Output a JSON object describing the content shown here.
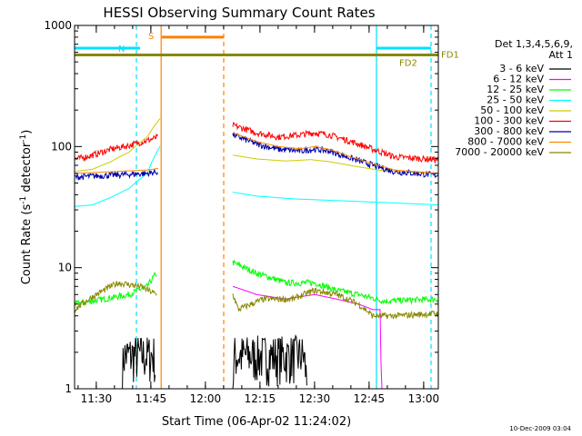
{
  "chart_data": {
    "type": "line",
    "title": "HESSI Observing Summary Count Rates",
    "xlabel": "Start Time (06-Apr-02 11:24:02)",
    "ylabel_main": "Count Rate (s",
    "ylabel_sup1": "-1",
    "ylabel_mid": " detector",
    "ylabel_sup2": "-1",
    "ylabel_end": ")",
    "yscale": "log",
    "ylim": [
      1,
      1000
    ],
    "xlim_minutes": [
      0,
      100
    ],
    "x_ticks": [
      {
        "m": 5.97,
        "label": "11:30"
      },
      {
        "m": 20.97,
        "label": "11:45"
      },
      {
        "m": 35.97,
        "label": "12:00"
      },
      {
        "m": 50.97,
        "label": "12:15"
      },
      {
        "m": 65.97,
        "label": "12:30"
      },
      {
        "m": 80.97,
        "label": "12:45"
      },
      {
        "m": 95.97,
        "label": "13:00"
      }
    ],
    "y_ticks": [
      {
        "v": 1,
        "label": "1"
      },
      {
        "v": 10,
        "label": "10"
      },
      {
        "v": 100,
        "label": "100"
      },
      {
        "v": 1000,
        "label": "1000"
      }
    ],
    "legend_title_1": "Det 1,3,4,5,6,9,",
    "legend_title_2": "Att 1",
    "legend_position": "right",
    "date_stamp": "10-Dec-2009 03:04",
    "gap_minutes": [
      23.8,
      43.3
    ],
    "series": [
      {
        "name": "3 - 6 keV",
        "color": "#000000",
        "segments": [
          [
            [
              0,
              1
            ],
            [
              13,
              1
            ],
            [
              13.5,
              1.9
            ],
            [
              22,
              1.9
            ],
            [
              22.3,
              1
            ]
          ],
          [
            [
              43.5,
              1
            ],
            [
              44,
              1.9
            ],
            [
              63,
              1.9
            ],
            [
              64,
              1
            ]
          ]
        ],
        "noisy": true
      },
      {
        "name": "6 - 12 keV",
        "color": "#ff00ff",
        "segments": [
          [
            [
              0,
              1
            ],
            [
              22,
              1
            ]
          ],
          [
            [
              43.5,
              7
            ],
            [
              50,
              6
            ],
            [
              58,
              5.5
            ],
            [
              66,
              6
            ],
            [
              72,
              5.5
            ],
            [
              78,
              5
            ],
            [
              82,
              4.5
            ],
            [
              84,
              4.5
            ],
            [
              84.3,
              1
            ],
            [
              100,
              1
            ]
          ]
        ]
      },
      {
        "name": "12 - 25 keV",
        "color": "#00ff00",
        "segments": [
          [
            [
              0,
              5
            ],
            [
              8,
              5.5
            ],
            [
              15,
              6
            ],
            [
              20,
              7
            ],
            [
              22.5,
              9
            ]
          ],
          [
            [
              43.5,
              11
            ],
            [
              50,
              9
            ],
            [
              58,
              7.5
            ],
            [
              66,
              7.5
            ],
            [
              72,
              6.5
            ],
            [
              78,
              6
            ],
            [
              85,
              5.3
            ],
            [
              100,
              5.5
            ]
          ]
        ],
        "noisy": true
      },
      {
        "name": "25 - 50 keV",
        "color": "#00ffff",
        "segments": [
          [
            [
              0,
              32
            ],
            [
              5,
              33
            ],
            [
              10,
              38
            ],
            [
              15,
              45
            ],
            [
              20,
              60
            ],
            [
              23.5,
              100
            ]
          ],
          [
            [
              43.5,
              42
            ],
            [
              50,
              39
            ],
            [
              60,
              37
            ],
            [
              70,
              36
            ],
            [
              80,
              35
            ],
            [
              90,
              34
            ],
            [
              100,
              33
            ]
          ]
        ]
      },
      {
        "name": "50 - 100 keV",
        "color": "#cccc00",
        "segments": [
          [
            [
              0,
              62
            ],
            [
              5,
              65
            ],
            [
              10,
              75
            ],
            [
              15,
              90
            ],
            [
              20,
              120
            ],
            [
              23.5,
              170
            ]
          ],
          [
            [
              43.5,
              85
            ],
            [
              50,
              79
            ],
            [
              58,
              76
            ],
            [
              65,
              78
            ],
            [
              70,
              75
            ],
            [
              78,
              68
            ],
            [
              85,
              63
            ],
            [
              100,
              60
            ]
          ]
        ]
      },
      {
        "name": "100 - 300 keV",
        "color": "#ff0000",
        "segments": [
          [
            [
              0,
              78
            ],
            [
              5,
              85
            ],
            [
              10,
              95
            ],
            [
              15,
              102
            ],
            [
              20,
              112
            ],
            [
              23,
              120
            ]
          ],
          [
            [
              43.5,
              150
            ],
            [
              50,
              130
            ],
            [
              56,
              120
            ],
            [
              62,
              125
            ],
            [
              66,
              130
            ],
            [
              70,
              125
            ],
            [
              76,
              110
            ],
            [
              82,
              95
            ],
            [
              88,
              82
            ],
            [
              100,
              78
            ]
          ]
        ],
        "noisy": true
      },
      {
        "name": "300 - 800 keV",
        "color": "#0000aa",
        "segments": [
          [
            [
              0,
              56
            ],
            [
              10,
              58
            ],
            [
              20,
              60
            ],
            [
              23,
              62
            ]
          ],
          [
            [
              43.5,
              125
            ],
            [
              50,
              105
            ],
            [
              56,
              95
            ],
            [
              62,
              92
            ],
            [
              66,
              95
            ],
            [
              70,
              92
            ],
            [
              76,
              80
            ],
            [
              82,
              70
            ],
            [
              88,
              62
            ],
            [
              100,
              58
            ]
          ]
        ],
        "noisy": true
      },
      {
        "name": "800 - 7000 keV",
        "color": "#ff8800",
        "segments": [
          [
            [
              0,
              60
            ],
            [
              10,
              62
            ],
            [
              20,
              64
            ],
            [
              23,
              66
            ]
          ],
          [
            [
              43.5,
              130
            ],
            [
              50,
              110
            ],
            [
              56,
              100
            ],
            [
              62,
              96
            ],
            [
              66,
              100
            ],
            [
              70,
              95
            ],
            [
              76,
              82
            ],
            [
              82,
              72
            ],
            [
              88,
              64
            ],
            [
              100,
              60
            ]
          ]
        ]
      },
      {
        "name": "7000 - 20000 keV",
        "color": "#888800",
        "segments": [
          [
            [
              0,
              4.5
            ],
            [
              6,
              6
            ],
            [
              12,
              7.5
            ],
            [
              18,
              7
            ],
            [
              22.5,
              6
            ]
          ],
          [
            [
              43.5,
              6
            ],
            [
              45,
              4.5
            ],
            [
              52,
              5.5
            ],
            [
              60,
              5.5
            ],
            [
              66,
              6.5
            ],
            [
              72,
              6
            ],
            [
              78,
              5
            ],
            [
              82,
              4
            ],
            [
              88,
              4
            ],
            [
              100,
              4.2
            ]
          ]
        ],
        "noisy": true
      }
    ],
    "flags": {
      "N_label": "N",
      "S_label": "S",
      "FD1_label": "FD1",
      "FD2_label": "FD2",
      "N_color": "#00e0ff",
      "S_color": "#ff8000",
      "FD_color": "#888800",
      "N_level": 650,
      "S_level": 800,
      "FD_level": 570,
      "N_spans": [
        [
          0,
          18
        ],
        [
          83,
          98
        ]
      ],
      "S_span": [
        24,
        41
      ],
      "vlines": [
        {
          "m": 17,
          "color": "#00e0ff",
          "dashed": true
        },
        {
          "m": 23.8,
          "color": "#ff8000",
          "dashed": false
        },
        {
          "m": 41,
          "color": "#ff8000",
          "dashed": true
        },
        {
          "m": 83,
          "color": "#00e0ff",
          "dashed": false
        },
        {
          "m": 98,
          "color": "#00e0ff",
          "dashed": true
        }
      ]
    }
  }
}
